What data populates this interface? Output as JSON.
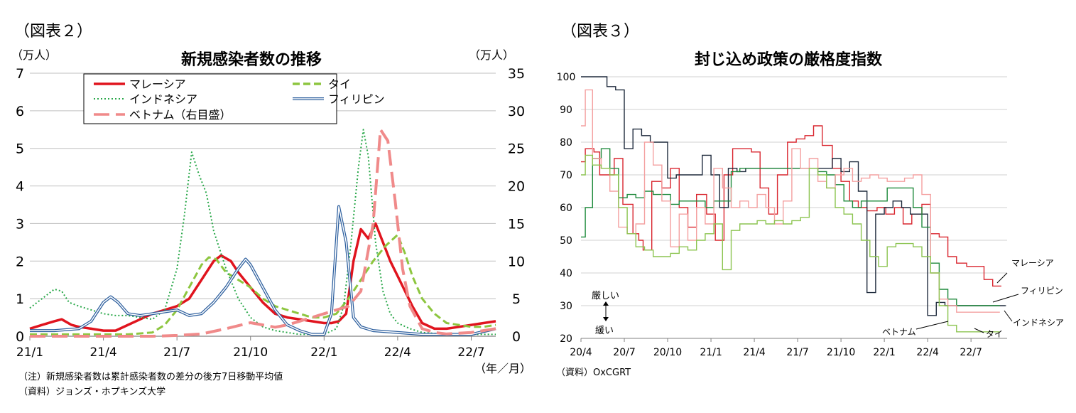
{
  "left": {
    "fig_label": "（図表２）",
    "unit_left": "（万人）",
    "unit_right": "（万人）",
    "unit_x": "（年／月）",
    "notes": [
      "（注）新規感染者数は累計感染者数の差分の後方7日移動平均値",
      "（資料）ジョンズ・ホプキンズ大学"
    ]
  },
  "right": {
    "fig_label": "（図表３）",
    "source": "（資料）OxCGRT",
    "arrow_top": "厳しい",
    "arrow_bottom": "緩い"
  },
  "chart_data": [
    {
      "type": "line",
      "title": "新規感染者数の推移",
      "x_tick_labels": [
        "21/1",
        "21/4",
        "21/7",
        "21/10",
        "22/1",
        "22/4",
        "22/7"
      ],
      "x_tick_months": [
        0,
        3,
        6,
        9,
        12,
        15,
        18
      ],
      "xlim": [
        0,
        19
      ],
      "ylim": [
        0,
        7
      ],
      "y2lim": [
        0,
        35
      ],
      "y_ticks": [
        0,
        1,
        2,
        3,
        4,
        5,
        6,
        7
      ],
      "y2_ticks": [
        0,
        5,
        10,
        15,
        20,
        25,
        30,
        35
      ],
      "grid": true,
      "legend_position": "top",
      "series": [
        {
          "name": "マレーシア",
          "color": "#e0141e",
          "style": "solid",
          "axis": "left",
          "x": [
            0,
            0.5,
            1.0,
            1.3,
            1.7,
            2.0,
            2.5,
            3.0,
            3.5,
            4.0,
            4.5,
            5.0,
            5.5,
            6.0,
            6.5,
            7.0,
            7.5,
            7.8,
            8.2,
            8.5,
            9.0,
            9.5,
            10.0,
            10.5,
            11.0,
            11.5,
            12.0,
            12.3,
            12.6,
            12.9,
            13.2,
            13.5,
            13.8,
            14.1,
            14.4,
            14.7,
            15.0,
            15.3,
            15.6,
            16.0,
            16.5,
            17.0,
            17.5,
            18.0,
            18.5,
            19.0
          ],
          "y": [
            0.2,
            0.3,
            0.4,
            0.45,
            0.3,
            0.25,
            0.2,
            0.15,
            0.15,
            0.3,
            0.45,
            0.6,
            0.7,
            0.8,
            1.0,
            1.5,
            2.0,
            2.15,
            2.0,
            1.7,
            1.3,
            0.9,
            0.6,
            0.5,
            0.45,
            0.4,
            0.35,
            0.35,
            0.4,
            0.6,
            2.0,
            2.85,
            2.6,
            3.0,
            2.5,
            2.0,
            1.6,
            1.2,
            0.8,
            0.35,
            0.2,
            0.2,
            0.25,
            0.3,
            0.35,
            0.4
          ]
        },
        {
          "name": "タイ",
          "color": "#8dc63f",
          "style": "dashed",
          "axis": "left",
          "x": [
            0,
            1,
            2,
            3,
            4,
            5,
            5.5,
            6,
            6.5,
            7,
            7.3,
            7.6,
            8,
            8.5,
            9,
            9.5,
            10,
            10.5,
            11,
            11.5,
            12,
            12.5,
            13,
            13.5,
            14,
            14.5,
            15,
            15.3,
            15.6,
            16,
            16.5,
            17,
            17.5,
            18,
            18.5,
            19
          ],
          "y": [
            0.05,
            0.05,
            0.05,
            0.05,
            0.05,
            0.1,
            0.3,
            0.7,
            1.3,
            1.9,
            2.1,
            2.05,
            1.7,
            1.5,
            1.3,
            1.0,
            0.8,
            0.7,
            0.6,
            0.5,
            0.5,
            0.6,
            1.0,
            1.5,
            2.0,
            2.4,
            2.7,
            2.2,
            1.6,
            1.0,
            0.6,
            0.35,
            0.3,
            0.25,
            0.25,
            0.3
          ]
        },
        {
          "name": "インドネシア",
          "color": "#2aa84a",
          "style": "dotted",
          "axis": "left",
          "x": [
            0,
            0.5,
            1.0,
            1.3,
            1.6,
            2.0,
            2.5,
            3.0,
            3.5,
            4.0,
            4.5,
            5.0,
            5.5,
            6.0,
            6.3,
            6.6,
            6.9,
            7.2,
            7.5,
            8.0,
            8.5,
            9.0,
            9.5,
            10.0,
            11.0,
            12.0,
            12.5,
            12.8,
            13.1,
            13.4,
            13.6,
            13.8,
            14.1,
            14.4,
            14.7,
            15.0,
            15.5,
            16.0,
            17.0,
            18.0,
            19.0
          ],
          "y": [
            0.75,
            1.0,
            1.25,
            1.2,
            0.9,
            0.8,
            0.7,
            0.6,
            0.55,
            0.55,
            0.5,
            0.45,
            0.7,
            1.8,
            3.2,
            4.9,
            4.3,
            3.8,
            2.8,
            1.8,
            1.0,
            0.5,
            0.25,
            0.15,
            0.05,
            0.05,
            0.2,
            0.8,
            2.5,
            4.5,
            5.5,
            4.8,
            2.5,
            1.2,
            0.6,
            0.35,
            0.2,
            0.1,
            0.05,
            0.05,
            0.05
          ]
        },
        {
          "name": "フィリピン",
          "color": "#2d5f9e",
          "style": "double",
          "axis": "left",
          "x": [
            0,
            1,
            2,
            2.5,
            3.0,
            3.3,
            3.6,
            4.0,
            4.5,
            5.0,
            5.5,
            6.0,
            6.5,
            7.0,
            7.5,
            8.0,
            8.5,
            8.8,
            9.0,
            9.5,
            10.0,
            10.5,
            11.0,
            11.5,
            12.0,
            12.3,
            12.6,
            12.9,
            13.2,
            13.5,
            14,
            15,
            16,
            17,
            18,
            19
          ],
          "y": [
            0.15,
            0.15,
            0.2,
            0.4,
            0.9,
            1.05,
            0.9,
            0.6,
            0.55,
            0.6,
            0.65,
            0.7,
            0.55,
            0.6,
            0.9,
            1.3,
            1.8,
            2.05,
            1.9,
            1.3,
            0.7,
            0.3,
            0.15,
            0.05,
            0.05,
            0.6,
            3.45,
            2.5,
            0.5,
            0.25,
            0.15,
            0.1,
            0.05,
            0.05,
            0.05,
            0.2
          ]
        },
        {
          "name": "ベトナム（右目盛）",
          "color": "#f08a8a",
          "style": "longdash",
          "axis": "right",
          "x": [
            0,
            3,
            5,
            6,
            7,
            8,
            9,
            9.5,
            10,
            10.5,
            11,
            11.5,
            12,
            12.5,
            13,
            13.5,
            14,
            14.3,
            14.6,
            14.9,
            15.2,
            15.5,
            16,
            16.5,
            17,
            18,
            19
          ],
          "y": [
            0,
            0,
            0,
            0.1,
            0.3,
            1.0,
            1.8,
            1.5,
            1.2,
            1.5,
            2.0,
            2.5,
            3.0,
            3.5,
            4.0,
            6.0,
            15.0,
            27.5,
            26.0,
            18.0,
            9.0,
            4.0,
            1.0,
            0.5,
            0.3,
            0.5,
            1.0
          ]
        }
      ]
    },
    {
      "type": "line",
      "title": "封じ込め政策の厳格度指数",
      "x_tick_labels": [
        "20/4",
        "20/7",
        "20/10",
        "21/1",
        "21/4",
        "21/7",
        "21/10",
        "22/1",
        "22/4",
        "22/7"
      ],
      "x_tick_months": [
        0,
        3,
        6,
        9,
        12,
        15,
        18,
        21,
        24,
        27
      ],
      "xlim": [
        0,
        29.5
      ],
      "ylim": [
        20,
        100
      ],
      "y_ticks": [
        20,
        30,
        40,
        50,
        60,
        70,
        80,
        90,
        100
      ],
      "grid": true,
      "legend_position": "right labels",
      "series": [
        {
          "name": "マレーシア",
          "color": "#d9262f",
          "x": [
            0,
            0.3,
            0.9,
            1.3,
            1.7,
            2.3,
            2.9,
            3.6,
            4.0,
            4.3,
            4.9,
            5.6,
            6.2,
            6.8,
            7.4,
            8.0,
            8.7,
            9.3,
            9.9,
            10.5,
            11.2,
            11.8,
            12.4,
            13.0,
            13.6,
            14.3,
            14.9,
            15.5,
            16.1,
            16.7,
            17.4,
            18.0,
            18.6,
            19.2,
            19.8,
            20.5,
            21.1,
            21.7,
            22.3,
            22.9,
            23.6,
            24.2,
            24.8,
            25.4,
            26.0,
            26.7,
            27.3,
            27.9,
            28.5,
            29.1
          ],
          "y": [
            74,
            78,
            77,
            70,
            70,
            75,
            61,
            52,
            50,
            47,
            68,
            66,
            72,
            60,
            54,
            64,
            58,
            50,
            70,
            78,
            78,
            77,
            66,
            58,
            70,
            80,
            81,
            82,
            85,
            79,
            72,
            68,
            62,
            60,
            59,
            60,
            58,
            60,
            55,
            58,
            61,
            52,
            51,
            45,
            43,
            42,
            42,
            38,
            36,
            36
          ]
        },
        {
          "name": "フィリピン",
          "color": "#1e2a3c",
          "x": [
            0,
            0.6,
            1.2,
            1.8,
            2.4,
            3.0,
            3.6,
            4.2,
            4.8,
            5.4,
            6.0,
            6.6,
            7.2,
            7.8,
            8.4,
            9.0,
            9.6,
            10.2,
            10.8,
            11.4,
            12.0,
            12.6,
            13.2,
            13.8,
            14.4,
            15.0,
            15.6,
            16.2,
            16.8,
            17.4,
            18.0,
            18.6,
            19.2,
            19.8,
            20.4,
            21.0,
            21.6,
            22.2,
            22.8,
            23.4,
            24.0,
            24.6,
            25.2,
            25.8,
            26.4,
            27.0,
            27.6,
            28.2,
            28.8,
            29.4
          ],
          "y": [
            100,
            100,
            100,
            97,
            96,
            78,
            84,
            82,
            80,
            80,
            69,
            70,
            70,
            70,
            76,
            70,
            60,
            72,
            71,
            72,
            72,
            72,
            72,
            72,
            72,
            72,
            72,
            72,
            72,
            75,
            71,
            74,
            65,
            34,
            58,
            60,
            62,
            60,
            58,
            58,
            27,
            31,
            30,
            30,
            30,
            30,
            30,
            30,
            30,
            30
          ]
        },
        {
          "name": "インドネシア",
          "color": "#1f8a3c",
          "x": [
            0,
            0.3,
            0.8,
            1.4,
            2.0,
            2.6,
            3.2,
            3.8,
            4.4,
            5.0,
            5.6,
            6.2,
            6.8,
            7.4,
            8.0,
            8.6,
            9.2,
            9.8,
            10.4,
            11.0,
            11.6,
            12.2,
            12.8,
            13.4,
            14.0,
            14.6,
            15.2,
            15.8,
            16.4,
            17.0,
            17.6,
            18.2,
            18.8,
            19.4,
            20.0,
            20.6,
            21.2,
            21.8,
            22.4,
            23.0,
            23.6,
            24.2,
            24.8,
            25.4,
            26.0,
            26.6,
            27.2,
            27.8,
            28.4,
            29.0
          ],
          "y": [
            51,
            60,
            75,
            78,
            72,
            63,
            64,
            63,
            65,
            64,
            64,
            61,
            62,
            62,
            62,
            60,
            62,
            62,
            71,
            72,
            72,
            72,
            72,
            72,
            72,
            72,
            72,
            72,
            71,
            70,
            67,
            62,
            60,
            62,
            62,
            62,
            66,
            66,
            66,
            60,
            54,
            43,
            35,
            32,
            30,
            30,
            30,
            30,
            30,
            30
          ]
        },
        {
          "name": "ベトナム",
          "color": "#f4a0a0",
          "x": [
            0,
            0.3,
            0.8,
            1.4,
            2.0,
            2.6,
            3.2,
            3.8,
            4.4,
            5.0,
            5.6,
            6.2,
            6.8,
            7.4,
            8.0,
            8.6,
            9.2,
            9.8,
            10.4,
            11.0,
            11.6,
            12.2,
            12.8,
            13.4,
            14.0,
            14.6,
            15.2,
            15.8,
            16.4,
            17.0,
            17.6,
            18.2,
            18.8,
            19.4,
            20.0,
            20.6,
            21.2,
            21.8,
            22.4,
            23.0,
            23.6,
            24.2,
            24.8,
            25.4,
            26.0,
            26.6,
            27.2,
            27.8,
            28.4,
            29.0
          ],
          "y": [
            85,
            96,
            75,
            72,
            65,
            54,
            52,
            55,
            80,
            73,
            62,
            48,
            58,
            50,
            60,
            55,
            72,
            66,
            60,
            62,
            60,
            64,
            60,
            55,
            62,
            78,
            72,
            75,
            68,
            66,
            70,
            72,
            68,
            69,
            70,
            69,
            68,
            68,
            69,
            70,
            64,
            40,
            32,
            30,
            28,
            28,
            28,
            28,
            28,
            28
          ]
        },
        {
          "name": "タイ",
          "color": "#8cc450",
          "x": [
            0,
            0.3,
            0.8,
            1.4,
            2.0,
            2.6,
            3.2,
            3.8,
            4.4,
            5.0,
            5.6,
            6.2,
            6.8,
            7.4,
            8.0,
            8.6,
            9.2,
            9.8,
            10.4,
            11.0,
            11.6,
            12.2,
            12.8,
            13.4,
            14.0,
            14.6,
            15.2,
            15.8,
            16.4,
            17.0,
            17.6,
            18.2,
            18.8,
            19.4,
            20.0,
            20.6,
            21.2,
            21.8,
            22.4,
            23.0,
            23.6,
            24.2,
            24.8,
            25.4,
            26.0,
            26.6,
            27.2,
            27.8,
            28.4,
            29.0
          ],
          "y": [
            70,
            76,
            73,
            72,
            70,
            60,
            52,
            48,
            47,
            45,
            45,
            46,
            48,
            47,
            50,
            52,
            55,
            41,
            53,
            55,
            55,
            56,
            55,
            56,
            55,
            56,
            57,
            72,
            70,
            66,
            60,
            58,
            55,
            50,
            45,
            42,
            48,
            49,
            49,
            48,
            45,
            40,
            30,
            24,
            22,
            22,
            22,
            22,
            22,
            22
          ]
        }
      ],
      "annotations": [
        "マレーシア",
        "フィリピン",
        "インドネシア",
        "ベトナム",
        "タイ"
      ]
    }
  ]
}
